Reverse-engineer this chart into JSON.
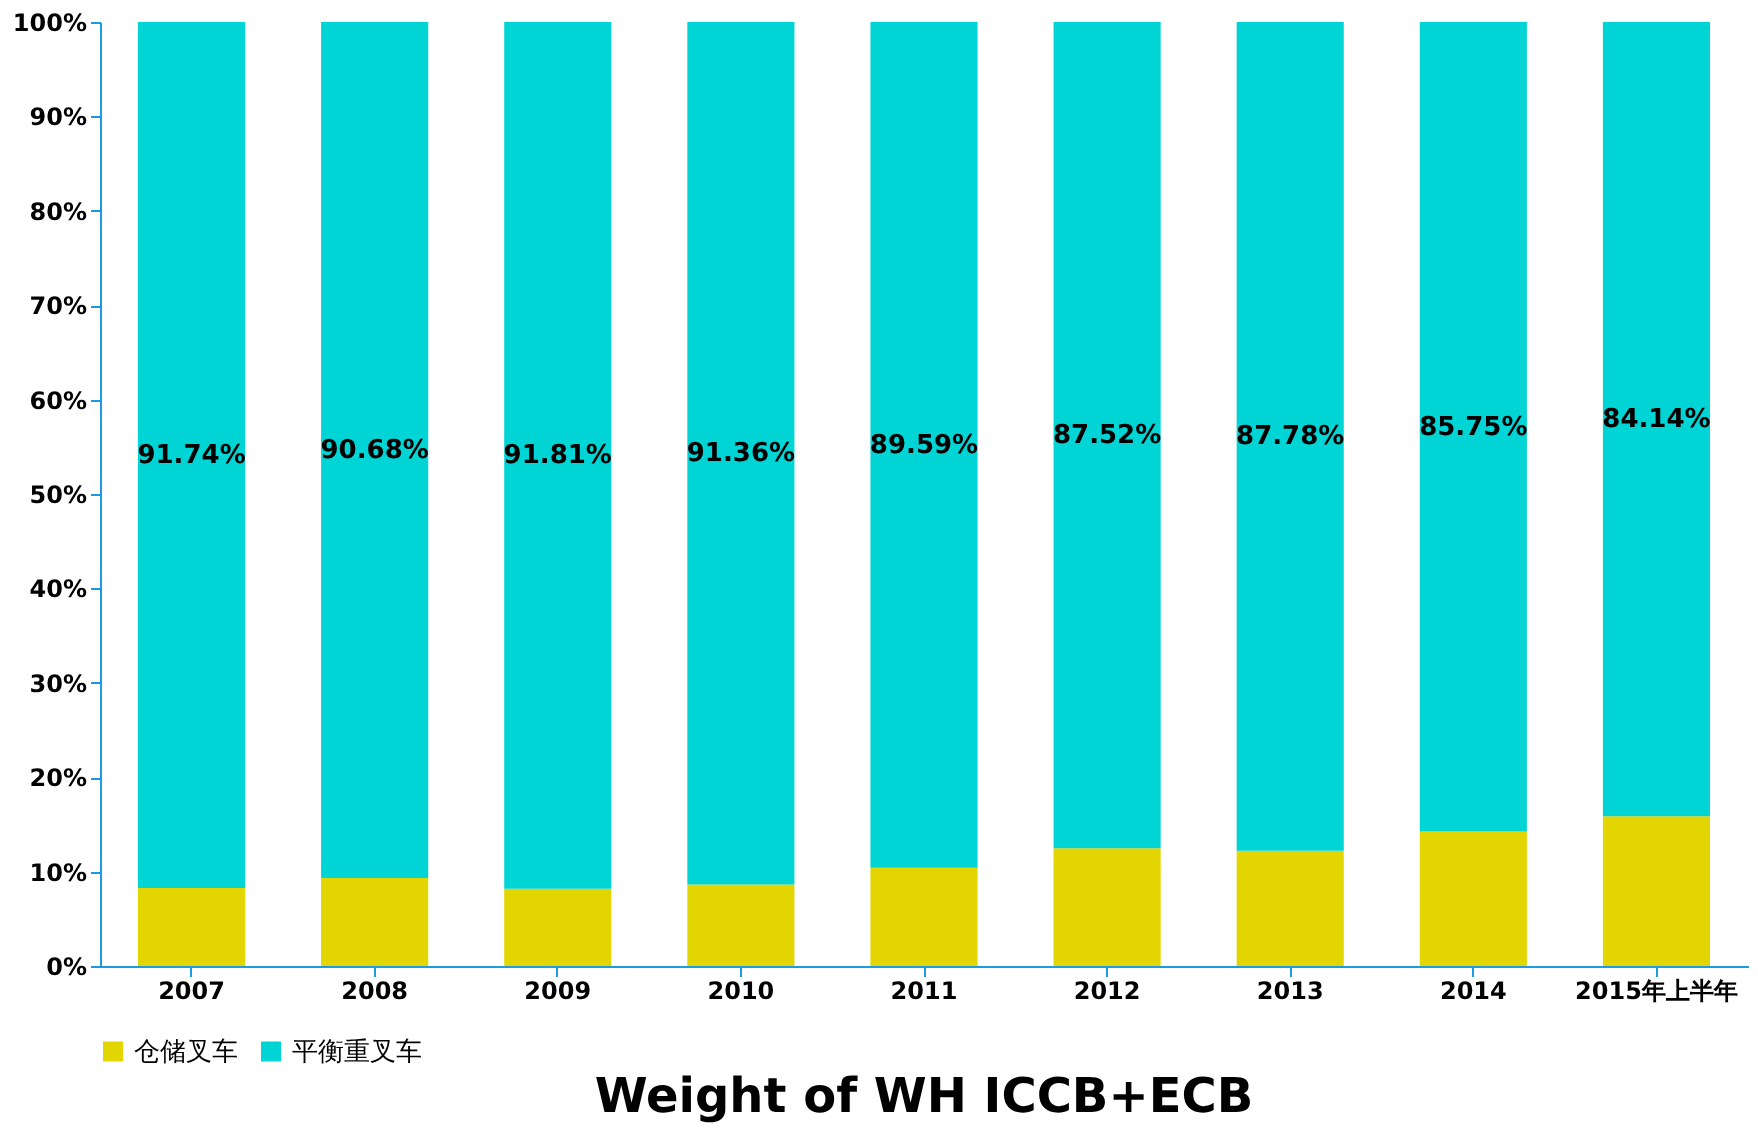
{
  "chart_data": {
    "type": "bar",
    "stacked": true,
    "title": "Weight of WH  ICCB+ECB",
    "categories": [
      "2007",
      "2008",
      "2009",
      "2010",
      "2011",
      "2012",
      "2013",
      "2014",
      "2015年上半年"
    ],
    "series": [
      {
        "name": "仓储叉车",
        "color": "#e3d600",
        "values": [
          8.26,
          9.32,
          8.19,
          8.64,
          10.41,
          12.48,
          12.22,
          14.25,
          15.86
        ]
      },
      {
        "name": "平衡重叉车",
        "color": "#00d4d4",
        "values": [
          91.74,
          90.68,
          91.81,
          91.36,
          89.59,
          87.52,
          87.78,
          85.75,
          84.14
        ],
        "value_labels": [
          "91.74%",
          "90.68%",
          "91.81%",
          "91.36%",
          "89.59%",
          "87.52%",
          "87.78%",
          "85.75%",
          "84.14%"
        ]
      }
    ],
    "ylim": [
      0,
      100
    ],
    "yticks": [
      {
        "value": 0,
        "label": "0%"
      },
      {
        "value": 10,
        "label": "10%"
      },
      {
        "value": 20,
        "label": "20%"
      },
      {
        "value": 30,
        "label": "30%"
      },
      {
        "value": 40,
        "label": "40%"
      },
      {
        "value": 50,
        "label": "50%"
      },
      {
        "value": 60,
        "label": "60%"
      },
      {
        "value": 70,
        "label": "70%"
      },
      {
        "value": 80,
        "label": "80%"
      },
      {
        "value": 90,
        "label": "90%"
      },
      {
        "value": 100,
        "label": "100%"
      }
    ],
    "grid": false,
    "legend": "bottom"
  }
}
